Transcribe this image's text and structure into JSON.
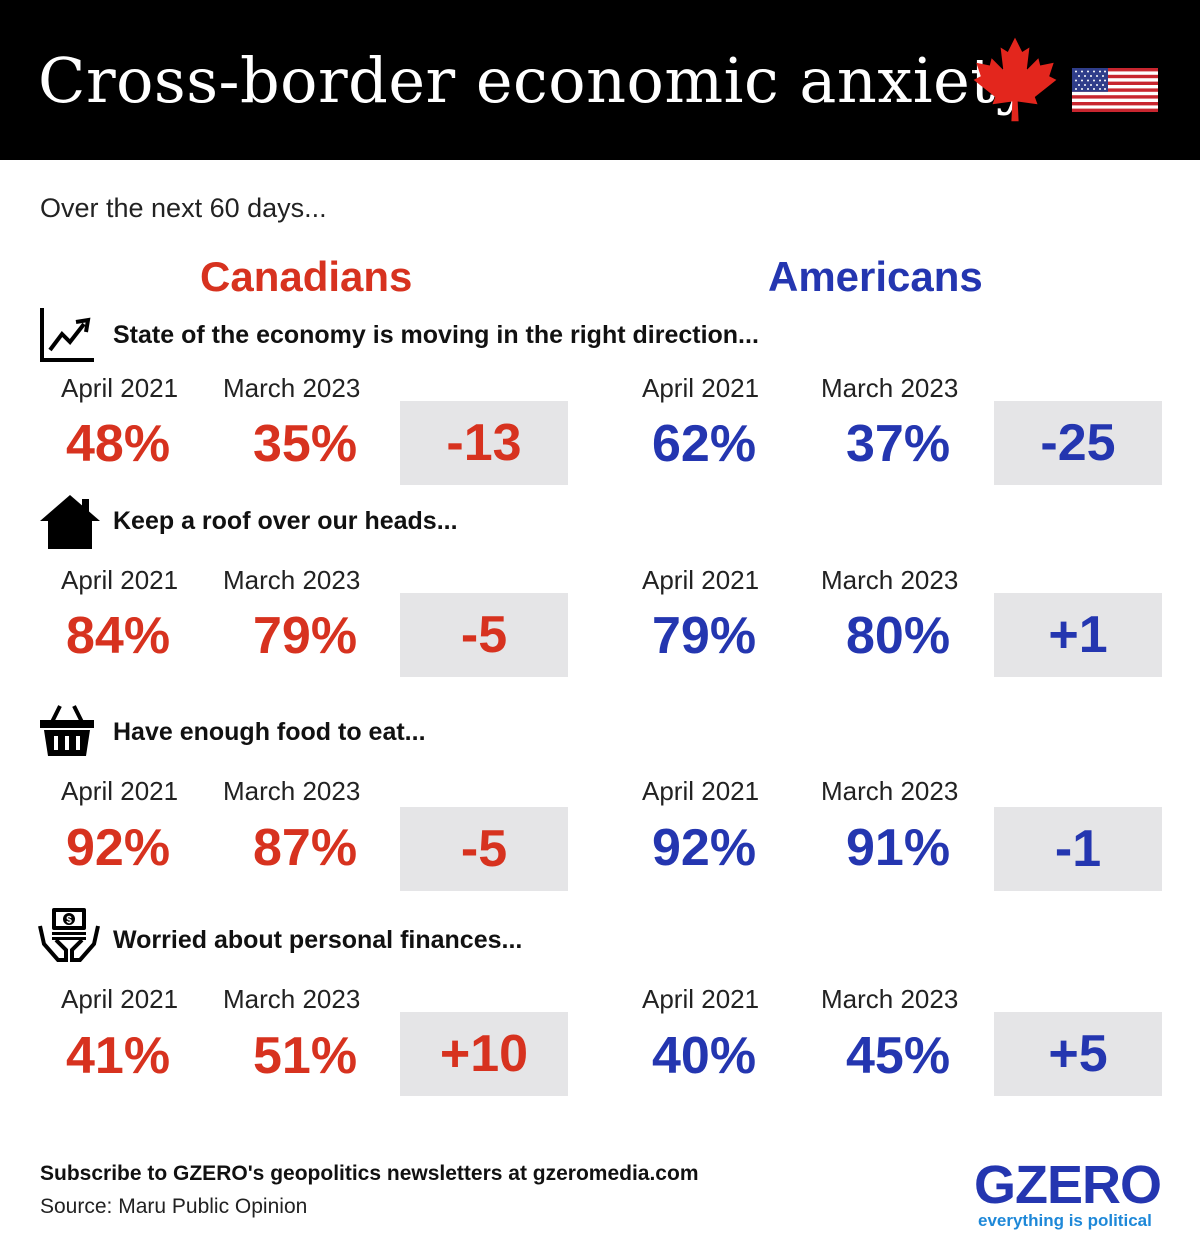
{
  "header": {
    "title": "Cross-border economic anxiety"
  },
  "subtitle": "Over the next 60 days...",
  "countries": {
    "canada": "Canadians",
    "usa": "Americans"
  },
  "chart_data": {
    "type": "table",
    "columns": [
      "April 2021",
      "March 2023"
    ],
    "rows": [
      {
        "label": "State of the economy is moving in the right direction...",
        "icon": "line-chart-icon",
        "canada": {
          "april_2021": "48%",
          "march_2023": "35%",
          "change": "-13"
        },
        "usa": {
          "april_2021": "62%",
          "march_2023": "37%",
          "change": "-25"
        }
      },
      {
        "label": "Keep a roof over our heads...",
        "icon": "house-icon",
        "canada": {
          "april_2021": "84%",
          "march_2023": "79%",
          "change": "-5"
        },
        "usa": {
          "april_2021": "79%",
          "march_2023": "80%",
          "change": "+1"
        }
      },
      {
        "label": "Have enough food to eat...",
        "icon": "basket-icon",
        "canada": {
          "april_2021": "92%",
          "march_2023": "87%",
          "change": "-5"
        },
        "usa": {
          "april_2021": "92%",
          "march_2023": "91%",
          "change": "-1"
        }
      },
      {
        "label": "Worried about personal finances...",
        "icon": "money-hands-icon",
        "canada": {
          "april_2021": "41%",
          "march_2023": "51%",
          "change": "+10"
        },
        "usa": {
          "april_2021": "40%",
          "march_2023": "45%",
          "change": "+5"
        }
      }
    ]
  },
  "colors": {
    "canada": "#d7321f",
    "usa": "#2436b0",
    "change_box": "#e5e5e7"
  },
  "footer": {
    "subscribe": "Subscribe to GZERO's geopolitics newsletters at gzeromedia.com",
    "source": "Source: Maru Public Opinion"
  },
  "logo": {
    "name": "GZERO",
    "tagline": "everything is political"
  }
}
